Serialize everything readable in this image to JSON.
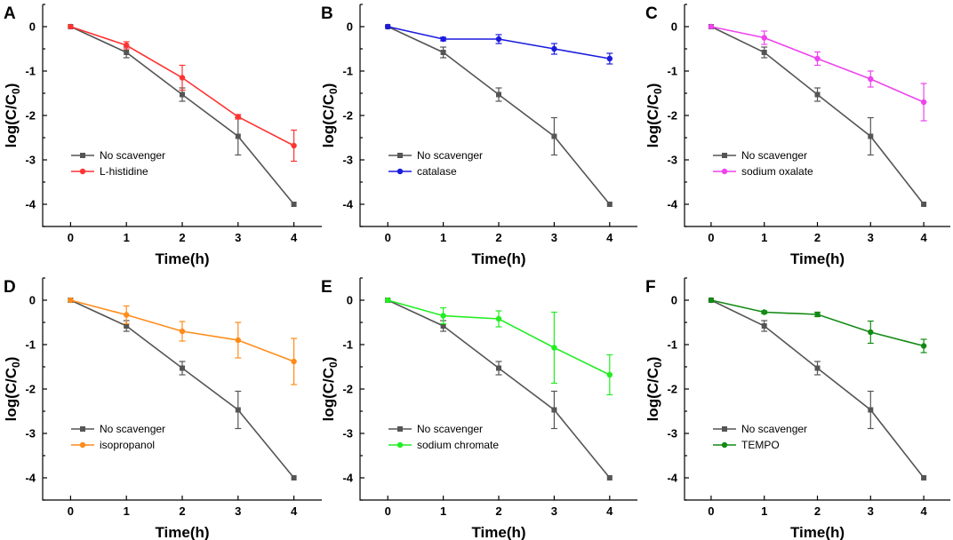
{
  "chart_data": [
    {
      "panel": "A",
      "type": "line",
      "xlabel": "Time(h)",
      "ylabel_main": "log(C/C",
      "ylabel_sub": "0",
      "ylabel_close": ")",
      "x": [
        0,
        1,
        2,
        3,
        4
      ],
      "xlim": [
        -0.5,
        4.5
      ],
      "ylim": [
        -4.5,
        0.5
      ],
      "xticks": [
        "0",
        "1",
        "2",
        "3",
        "4"
      ],
      "yticks": [
        "0",
        "-1",
        "-2",
        "-3",
        "-4"
      ],
      "series": [
        {
          "name": "No scavenger",
          "color": "#555555",
          "marker": "square",
          "values": [
            0,
            -0.58,
            -1.53,
            -2.47,
            -4.0
          ],
          "errors": [
            0,
            0.12,
            0.15,
            0.42,
            0
          ]
        },
        {
          "name": "L-histidine",
          "color": "#ff3333",
          "marker": "circle",
          "values": [
            0,
            -0.42,
            -1.15,
            -2.03,
            -2.68
          ],
          "errors": [
            0,
            0.08,
            0.28,
            0.05,
            0.35
          ]
        }
      ]
    },
    {
      "panel": "B",
      "type": "line",
      "xlabel": "Time(h)",
      "ylabel_main": "log(C/C",
      "ylabel_sub": "0",
      "ylabel_close": ")",
      "x": [
        0,
        1,
        2,
        3,
        4
      ],
      "xlim": [
        -0.5,
        4.5
      ],
      "ylim": [
        -4.5,
        0.5
      ],
      "xticks": [
        "0",
        "1",
        "2",
        "3",
        "4"
      ],
      "yticks": [
        "0",
        "-1",
        "-2",
        "-3",
        "-4"
      ],
      "series": [
        {
          "name": "No scavenger",
          "color": "#555555",
          "marker": "square",
          "values": [
            0,
            -0.58,
            -1.53,
            -2.47,
            -4.0
          ],
          "errors": [
            0,
            0.12,
            0.15,
            0.42,
            0
          ]
        },
        {
          "name": "catalase",
          "color": "#1a1adf",
          "marker": "circle",
          "values": [
            0,
            -0.28,
            -0.28,
            -0.5,
            -0.72
          ],
          "errors": [
            0,
            0.04,
            0.1,
            0.12,
            0.12
          ]
        }
      ]
    },
    {
      "panel": "C",
      "type": "line",
      "xlabel": "Time(h)",
      "ylabel_main": "log(C/C",
      "ylabel_sub": "0",
      "ylabel_close": ")",
      "x": [
        0,
        1,
        2,
        3,
        4
      ],
      "xlim": [
        -0.5,
        4.5
      ],
      "ylim": [
        -4.5,
        0.5
      ],
      "xticks": [
        "0",
        "1",
        "2",
        "3",
        "4"
      ],
      "yticks": [
        "0",
        "-1",
        "-2",
        "-3",
        "-4"
      ],
      "series": [
        {
          "name": "No scavenger",
          "color": "#555555",
          "marker": "square",
          "values": [
            0,
            -0.58,
            -1.53,
            -2.47,
            -4.0
          ],
          "errors": [
            0,
            0.12,
            0.15,
            0.42,
            0
          ]
        },
        {
          "name": "sodium oxalate",
          "color": "#ee44ee",
          "marker": "circle",
          "values": [
            0,
            -0.25,
            -0.72,
            -1.18,
            -1.7
          ],
          "errors": [
            0,
            0.15,
            0.15,
            0.18,
            0.42
          ]
        }
      ]
    },
    {
      "panel": "D",
      "type": "line",
      "xlabel": "Time(h)",
      "ylabel_main": "log(C/C",
      "ylabel_sub": "0",
      "ylabel_close": ")",
      "x": [
        0,
        1,
        2,
        3,
        4
      ],
      "xlim": [
        -0.5,
        4.5
      ],
      "ylim": [
        -4.5,
        0.5
      ],
      "xticks": [
        "0",
        "1",
        "2",
        "3",
        "4"
      ],
      "yticks": [
        "0",
        "-1",
        "-2",
        "-3",
        "-4"
      ],
      "series": [
        {
          "name": "No scavenger",
          "color": "#555555",
          "marker": "square",
          "values": [
            0,
            -0.58,
            -1.53,
            -2.47,
            -4.0
          ],
          "errors": [
            0,
            0.12,
            0.15,
            0.42,
            0
          ]
        },
        {
          "name": "isopropanol",
          "color": "#ff8c1a",
          "marker": "circle",
          "values": [
            0,
            -0.33,
            -0.7,
            -0.9,
            -1.38
          ],
          "errors": [
            0,
            0.2,
            0.22,
            0.4,
            0.52
          ]
        }
      ]
    },
    {
      "panel": "E",
      "type": "line",
      "xlabel": "Time(h)",
      "ylabel_main": "log(C/C",
      "ylabel_sub": "0",
      "ylabel_close": ")",
      "x": [
        0,
        1,
        2,
        3,
        4
      ],
      "xlim": [
        -0.5,
        4.5
      ],
      "ylim": [
        -4.5,
        0.5
      ],
      "xticks": [
        "0",
        "1",
        "2",
        "3",
        "4"
      ],
      "yticks": [
        "0",
        "-1",
        "-2",
        "-3",
        "-4"
      ],
      "series": [
        {
          "name": "No scavenger",
          "color": "#555555",
          "marker": "square",
          "values": [
            0,
            -0.58,
            -1.53,
            -2.47,
            -4.0
          ],
          "errors": [
            0,
            0.12,
            0.15,
            0.42,
            0
          ]
        },
        {
          "name": "sodium chromate",
          "color": "#22ee22",
          "marker": "circle",
          "values": [
            0,
            -0.35,
            -0.42,
            -1.07,
            -1.68
          ],
          "errors": [
            0,
            0.18,
            0.18,
            0.8,
            0.45
          ]
        }
      ]
    },
    {
      "panel": "F",
      "type": "line",
      "xlabel": "Time(h)",
      "ylabel_main": "log(C/C",
      "ylabel_sub": "0",
      "ylabel_close": ")",
      "x": [
        0,
        1,
        2,
        3,
        4
      ],
      "xlim": [
        -0.5,
        4.5
      ],
      "ylim": [
        -4.5,
        0.5
      ],
      "xticks": [
        "0",
        "1",
        "2",
        "3",
        "4"
      ],
      "yticks": [
        "0",
        "-1",
        "-2",
        "-3",
        "-4"
      ],
      "series": [
        {
          "name": "No scavenger",
          "color": "#555555",
          "marker": "square",
          "values": [
            0,
            -0.58,
            -1.53,
            -2.47,
            -4.0
          ],
          "errors": [
            0,
            0.12,
            0.15,
            0.42,
            0
          ]
        },
        {
          "name": "TEMPO",
          "color": "#138a13",
          "marker": "circle",
          "values": [
            0,
            -0.27,
            -0.32,
            -0.72,
            -1.03
          ],
          "errors": [
            0,
            0.03,
            0.05,
            0.25,
            0.15
          ]
        }
      ]
    }
  ]
}
